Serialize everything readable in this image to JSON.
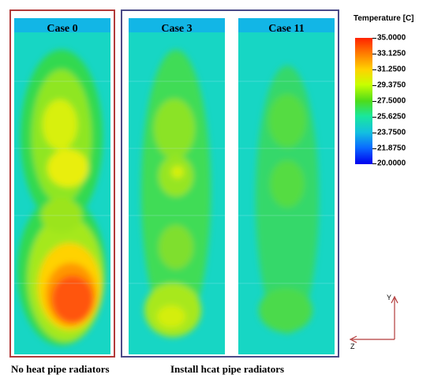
{
  "panels": [
    {
      "label": "Case 0"
    },
    {
      "label": "Case 3"
    },
    {
      "label": "Case 11"
    }
  ],
  "groups": {
    "left": "No heat pipe radiators",
    "right": "Install hcat pipe radiators"
  },
  "legend": {
    "title": "Temperature [C]",
    "ticks": [
      "35.0000",
      "33.1250",
      "31.2500",
      "29.3750",
      "27.5000",
      "25.6250",
      "23.7500",
      "21.8750",
      "20.0000"
    ]
  },
  "axes": {
    "y_label": "Y",
    "z_label": "Z"
  },
  "colors": {
    "red_frame": "#b23a3a",
    "blue_frame": "#4a4a88"
  }
}
